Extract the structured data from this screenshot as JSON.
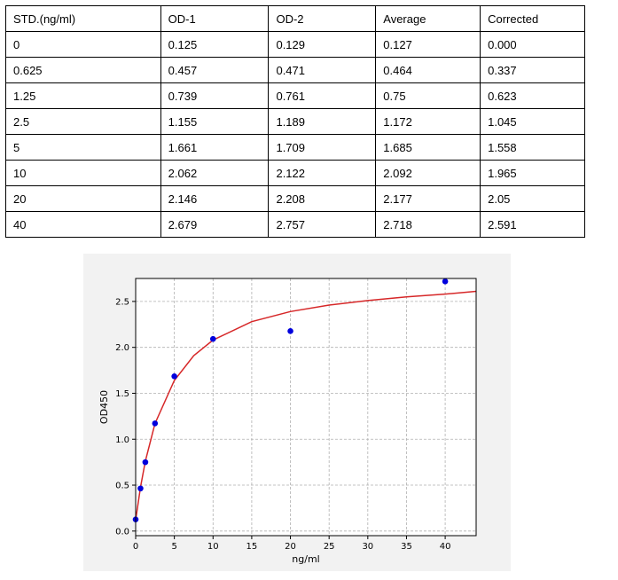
{
  "table": {
    "headers": [
      "STD.(ng/ml)",
      "OD-1",
      "OD-2",
      "Average",
      "Corrected"
    ],
    "rows": [
      [
        "0",
        "0.125",
        "0.129",
        "0.127",
        "0.000"
      ],
      [
        "0.625",
        "0.457",
        "0.471",
        "0.464",
        "0.337"
      ],
      [
        "1.25",
        "0.739",
        "0.761",
        "0.75",
        "0.623"
      ],
      [
        "2.5",
        "1.155",
        "1.189",
        "1.172",
        "1.045"
      ],
      [
        "5",
        "1.661",
        "1.709",
        "1.685",
        "1.558"
      ],
      [
        "10",
        "2.062",
        "2.122",
        "2.092",
        "1.965"
      ],
      [
        "20",
        "2.146",
        "2.208",
        "2.177",
        "2.05"
      ],
      [
        "40",
        "2.679",
        "2.757",
        "2.718",
        "2.591"
      ]
    ]
  },
  "chart_data": {
    "type": "scatter",
    "title": "",
    "xlabel": "ng/ml",
    "ylabel": "OD450",
    "xlim": [
      0,
      44
    ],
    "ylim": [
      -0.05,
      2.75
    ],
    "xticks": [
      "0",
      "5",
      "10",
      "15",
      "20",
      "25",
      "30",
      "35",
      "40"
    ],
    "yticks": [
      "0.0",
      "0.5",
      "1.0",
      "1.5",
      "2.0",
      "2.5"
    ],
    "grid": true,
    "series": [
      {
        "type": "scatter",
        "x": [
          0,
          0.625,
          1.25,
          2.5,
          5,
          10,
          20,
          40
        ],
        "y": [
          0.127,
          0.464,
          0.75,
          1.172,
          1.685,
          2.092,
          2.177,
          2.718
        ]
      },
      {
        "type": "line",
        "x": [
          0,
          0.625,
          1.25,
          2.5,
          5,
          7.5,
          10,
          15,
          20,
          25,
          30,
          35,
          40,
          44
        ],
        "y": [
          0.12,
          0.48,
          0.76,
          1.17,
          1.64,
          1.91,
          2.08,
          2.28,
          2.39,
          2.46,
          2.51,
          2.55,
          2.58,
          2.61
        ]
      }
    ],
    "colors": {
      "points": "#0000dd",
      "curve": "#d62728",
      "background": "#f2f2f2"
    }
  }
}
